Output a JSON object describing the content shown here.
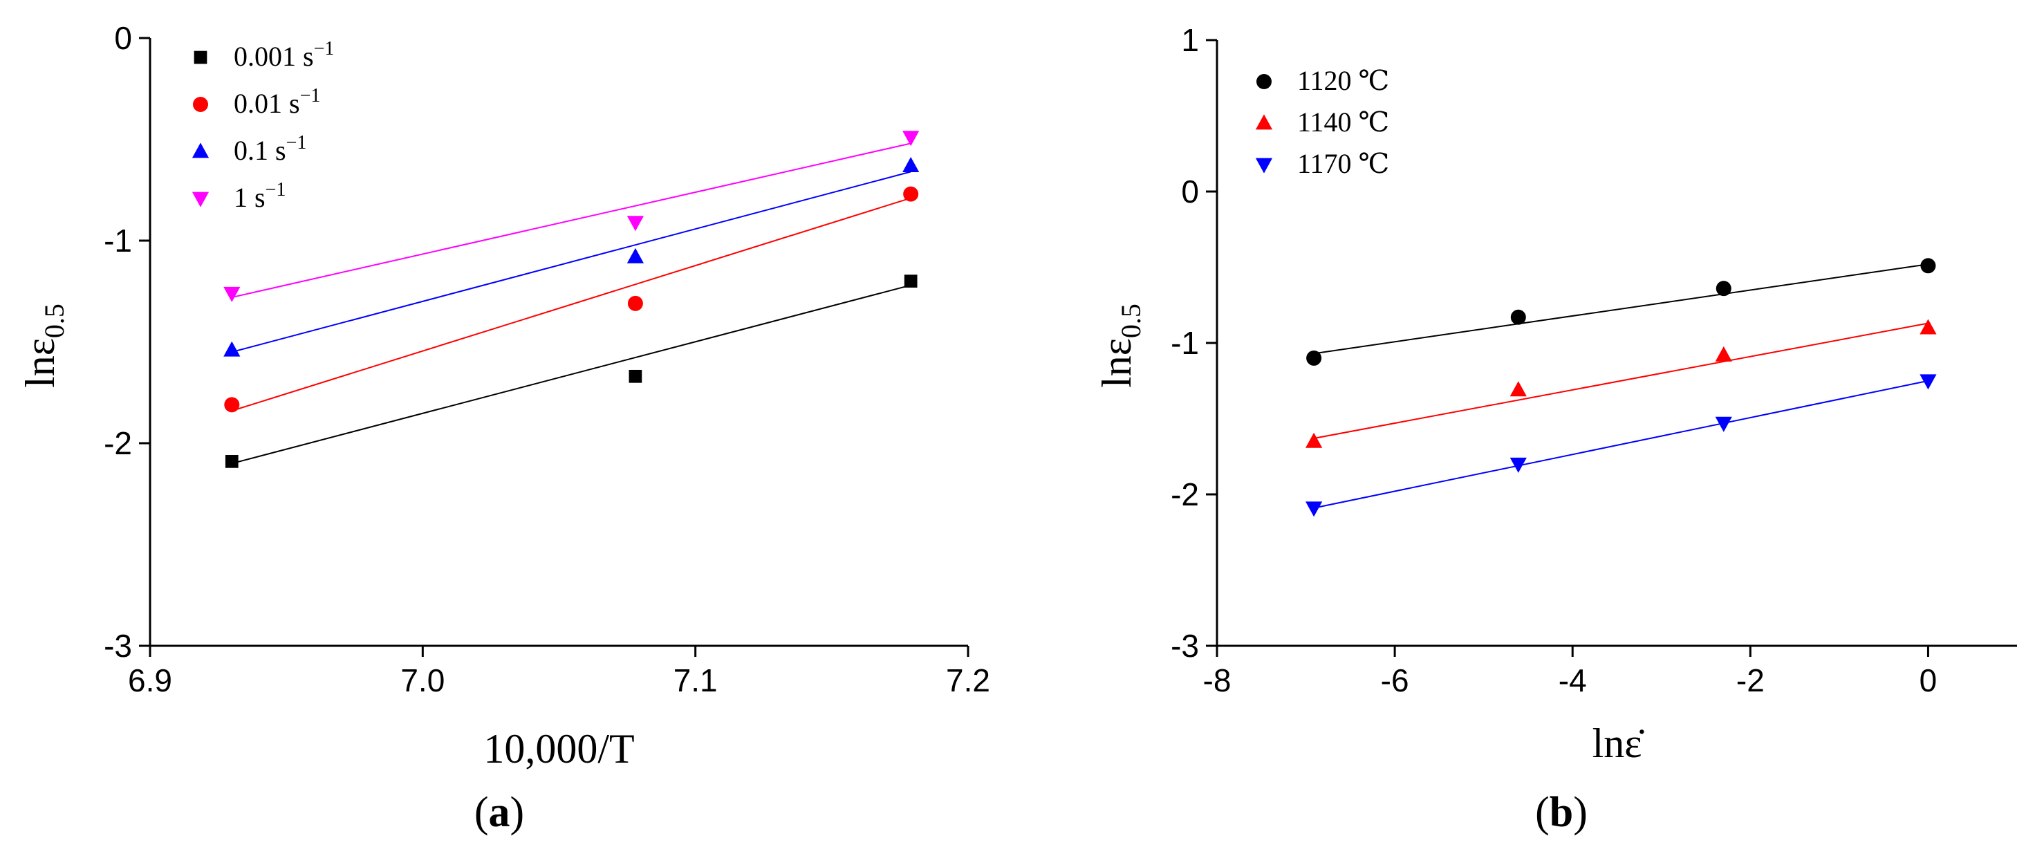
{
  "chart_data": [
    {
      "type": "scatter",
      "caption_label": "a",
      "xlabel": "10,000/T",
      "ylabel_base": "lnε",
      "ylabel_sub": "0.5",
      "xlim": [
        6.9,
        7.2
      ],
      "ylim": [
        -3,
        0
      ],
      "xticks": [
        6.9,
        7.0,
        7.1,
        7.2
      ],
      "xtick_labels": [
        "6.9",
        "7.0",
        "7.1",
        "7.2"
      ],
      "yticks": [
        0,
        -1,
        -2,
        -3
      ],
      "ytick_labels": [
        "0",
        "-1",
        "-2",
        "-3"
      ],
      "x": [
        6.93,
        7.078,
        7.179
      ],
      "series": [
        {
          "name": "0.001 s",
          "sup": "−1",
          "marker": "square",
          "color": "#000000",
          "values": [
            -2.09,
            -1.67,
            -1.2
          ],
          "fit": [
            -2.1,
            -1.22
          ]
        },
        {
          "name": "0.01 s",
          "sup": "−1",
          "marker": "circle",
          "color": "#ff0000",
          "values": [
            -1.81,
            -1.31,
            -0.77
          ],
          "fit": [
            -1.84,
            -0.79
          ]
        },
        {
          "name": "0.1 s",
          "sup": "−1",
          "marker": "triangle-up",
          "color": "#0000ff",
          "values": [
            -1.54,
            -1.08,
            -0.63
          ],
          "fit": [
            -1.55,
            -0.66
          ]
        },
        {
          "name": "1 s",
          "sup": "−1",
          "marker": "triangle-down",
          "color": "#ff00ff",
          "values": [
            -1.26,
            -0.91,
            -0.49
          ],
          "fit": [
            -1.28,
            -0.52
          ]
        }
      ]
    },
    {
      "type": "scatter",
      "caption_label": "b",
      "xlabel": "lnε̇",
      "ylabel_base": "lnε",
      "ylabel_sub": "0.5",
      "xlim": [
        -8,
        1
      ],
      "ylim": [
        -3,
        1
      ],
      "xticks": [
        -8,
        -6,
        -4,
        -2,
        0
      ],
      "xtick_labels": [
        "-8",
        "-6",
        "-4",
        "-2",
        "0"
      ],
      "yticks": [
        1,
        0,
        -1,
        -2,
        -3
      ],
      "ytick_labels": [
        "1",
        "0",
        "-1",
        "-2",
        "-3"
      ],
      "x": [
        -6.91,
        -4.61,
        -2.3,
        0
      ],
      "series": [
        {
          "name": "1120 ℃",
          "sup": "",
          "marker": "circle",
          "color": "#000000",
          "values": [
            -1.1,
            -0.83,
            -0.64,
            -0.49
          ],
          "fit": [
            -1.07,
            -0.48
          ]
        },
        {
          "name": "1140 ℃",
          "sup": "",
          "marker": "triangle-up",
          "color": "#ff0000",
          "values": [
            -1.65,
            -1.31,
            -1.08,
            -0.9
          ],
          "fit": [
            -1.63,
            -0.87
          ]
        },
        {
          "name": "1170 ℃",
          "sup": "",
          "marker": "triangle-down",
          "color": "#0000ff",
          "values": [
            -2.09,
            -1.8,
            -1.53,
            -1.25
          ],
          "fit": [
            -2.09,
            -1.25
          ]
        }
      ]
    }
  ]
}
